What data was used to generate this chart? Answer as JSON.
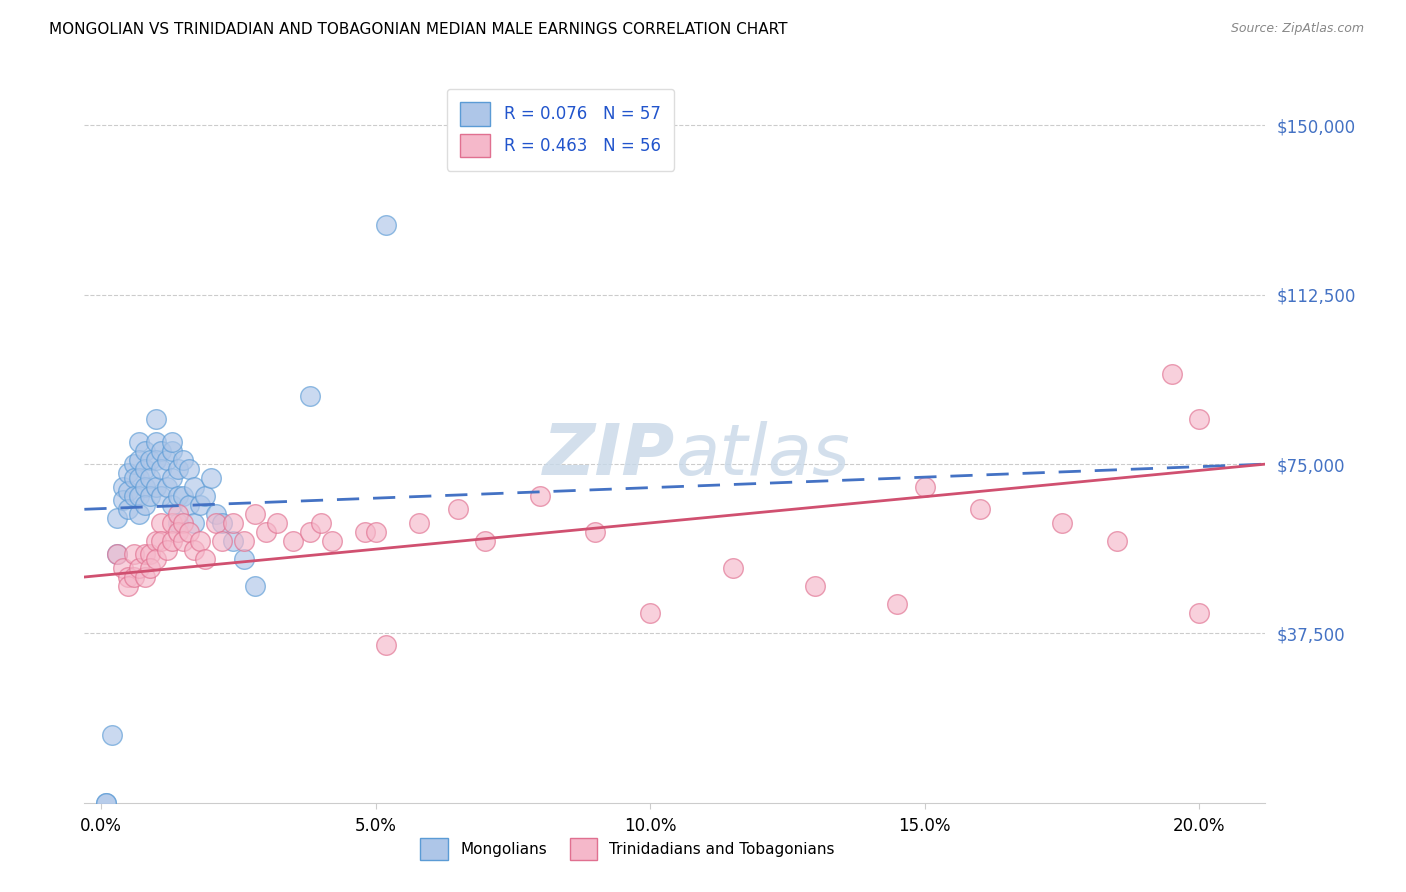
{
  "title": "MONGOLIAN VS TRINIDADIAN AND TOBAGONIAN MEDIAN MALE EARNINGS CORRELATION CHART",
  "source": "Source: ZipAtlas.com",
  "xlabel_ticks": [
    "0.0%",
    "5.0%",
    "10.0%",
    "15.0%",
    "20.0%"
  ],
  "xlabel_vals": [
    0.0,
    0.05,
    0.1,
    0.15,
    0.2
  ],
  "ylabel_ticks": [
    "$37,500",
    "$75,000",
    "$112,500",
    "$150,000"
  ],
  "ylabel_vals": [
    37500,
    75000,
    112500,
    150000
  ],
  "ymin": 0,
  "ymax": 160000,
  "xmin": -0.003,
  "xmax": 0.212,
  "mongolian_color": "#aec6e8",
  "trinidadian_color": "#f5b8ca",
  "mongolian_edge": "#5b9bd5",
  "trinidadian_edge": "#e07090",
  "trend_mongolian_color": "#4472c4",
  "trend_trinidadian_color": "#d05070",
  "watermark_color": "#c8d8e8",
  "legend_r_mongolian": "R = 0.076",
  "legend_n_mongolian": "N = 57",
  "legend_r_trinidadian": "R = 0.463",
  "legend_n_trinidadian": "N = 56",
  "mongolian_x": [
    0.001,
    0.001,
    0.002,
    0.003,
    0.003,
    0.004,
    0.004,
    0.005,
    0.005,
    0.005,
    0.006,
    0.006,
    0.006,
    0.007,
    0.007,
    0.007,
    0.007,
    0.007,
    0.008,
    0.008,
    0.008,
    0.008,
    0.009,
    0.009,
    0.009,
    0.01,
    0.01,
    0.01,
    0.011,
    0.011,
    0.011,
    0.012,
    0.012,
    0.013,
    0.013,
    0.013,
    0.014,
    0.014,
    0.014,
    0.015,
    0.015,
    0.016,
    0.016,
    0.017,
    0.017,
    0.018,
    0.019,
    0.02,
    0.021,
    0.022,
    0.024,
    0.026,
    0.028,
    0.038,
    0.052,
    0.01,
    0.013
  ],
  "mongolian_y": [
    0,
    0,
    15000,
    63000,
    55000,
    70000,
    67000,
    73000,
    69000,
    65000,
    75000,
    72000,
    68000,
    80000,
    76000,
    72000,
    68000,
    64000,
    78000,
    74000,
    70000,
    66000,
    76000,
    72000,
    68000,
    80000,
    76000,
    70000,
    78000,
    74000,
    68000,
    76000,
    70000,
    78000,
    72000,
    66000,
    74000,
    68000,
    62000,
    76000,
    68000,
    74000,
    66000,
    70000,
    62000,
    66000,
    68000,
    72000,
    64000,
    62000,
    58000,
    54000,
    48000,
    90000,
    128000,
    85000,
    80000
  ],
  "trinidadian_x": [
    0.003,
    0.004,
    0.005,
    0.005,
    0.006,
    0.006,
    0.007,
    0.008,
    0.008,
    0.009,
    0.009,
    0.01,
    0.01,
    0.011,
    0.011,
    0.012,
    0.013,
    0.013,
    0.014,
    0.014,
    0.015,
    0.015,
    0.016,
    0.017,
    0.018,
    0.019,
    0.021,
    0.022,
    0.024,
    0.026,
    0.028,
    0.03,
    0.032,
    0.035,
    0.038,
    0.04,
    0.042,
    0.048,
    0.052,
    0.058,
    0.065,
    0.07,
    0.08,
    0.09,
    0.1,
    0.115,
    0.13,
    0.145,
    0.15,
    0.16,
    0.175,
    0.185,
    0.195,
    0.2,
    0.2,
    0.05
  ],
  "trinidadian_y": [
    55000,
    52000,
    50000,
    48000,
    55000,
    50000,
    52000,
    55000,
    50000,
    55000,
    52000,
    58000,
    54000,
    62000,
    58000,
    56000,
    62000,
    58000,
    64000,
    60000,
    62000,
    58000,
    60000,
    56000,
    58000,
    54000,
    62000,
    58000,
    62000,
    58000,
    64000,
    60000,
    62000,
    58000,
    60000,
    62000,
    58000,
    60000,
    35000,
    62000,
    65000,
    58000,
    68000,
    60000,
    42000,
    52000,
    48000,
    44000,
    70000,
    65000,
    62000,
    58000,
    95000,
    85000,
    42000,
    60000
  ]
}
